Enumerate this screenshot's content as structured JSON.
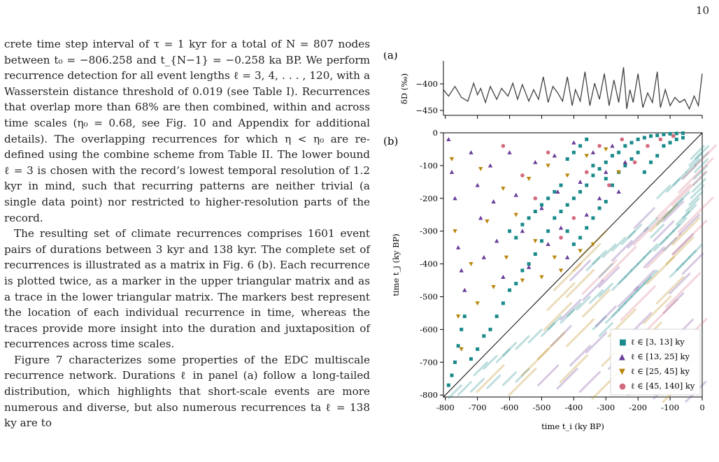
{
  "page_number": "10",
  "body": {
    "paragraphs": [
      "crete time step interval of τ = 1 kyr for a total of N = 807 nodes between t₀ = −806.258 and t_{N−1} = −0.258 ka BP. We perform recurrence detection for all event lengths ℓ = 3, 4, . . . , 120, with a Wasserstein distance threshold of 0.019 (see Table I). Recurrences that overlap more than 68% are then combined, within and across time scales (η₀ = 0.68, see Fig. 10 and Appendix for additional details). The overlapping recurrences for which η < η₀ are re-defined using the combine scheme from Table II. The lower bound ℓ = 3 is chosen with the record’s lowest temporal resolution of 1.2 kyr in mind, such that recurring patterns are neither trivial (a single data point) nor restricted to higher-resolution parts of the record.",
      "The resulting set of climate recurrences comprises 1601 event pairs of durations between 3 kyr and 138 kyr. The complete set of recurrences is illustrated as a matrix in Fig. 6 (b). Each recurrence is plotted twice, as a marker in the upper triangular matrix and as a trace in the lower triangular matrix. The markers best represent the location of each individual recurrence in time, whereas the traces provide more insight into the duration and juxtaposition of recurrences across time scales.",
      "Figure 7 characterizes some properties of the EDC multiscale recurrence network. Durations ℓ in panel (a) follow a long-tailed distribution, which highlights that short-scale events are more numerous and diverse, but also numerous recurrences ta ℓ = 138 ky are to"
    ]
  },
  "figure": {
    "panel_a_label": "(a)",
    "panel_b_label": "(b)",
    "legend_symbols": [
      "■",
      "▲",
      "▼",
      "●"
    ]
  },
  "chart_data": [
    {
      "type": "line",
      "panel": "(a)",
      "ylabel": "δD (‰)",
      "y_ticks": [
        "−400",
        "−450"
      ],
      "xlim": [
        -806,
        0
      ],
      "ylim": [
        -460,
        -375
      ],
      "color": "#111111",
      "x": [
        -806,
        -790,
        -770,
        -750,
        -730,
        -712,
        -700,
        -690,
        -675,
        -660,
        -640,
        -625,
        -605,
        -590,
        -575,
        -560,
        -540,
        -525,
        -510,
        -495,
        -480,
        -465,
        -450,
        -435,
        -420,
        -405,
        -395,
        -380,
        -365,
        -350,
        -335,
        -320,
        -305,
        -290,
        -275,
        -260,
        -245,
        -235,
        -225,
        -215,
        -200,
        -185,
        -170,
        -155,
        -140,
        -130,
        -115,
        -100,
        -85,
        -70,
        -55,
        -40,
        -25,
        -12,
        0
      ],
      "y": [
        -420,
        -430,
        -415,
        -432,
        -438,
        -410,
        -428,
        -418,
        -440,
        -415,
        -435,
        -418,
        -430,
        -410,
        -435,
        -412,
        -438,
        -420,
        -435,
        -400,
        -440,
        -415,
        -425,
        -438,
        -400,
        -445,
        -420,
        -438,
        -392,
        -445,
        -410,
        -435,
        -395,
        -445,
        -405,
        -440,
        -385,
        -450,
        -420,
        -440,
        -395,
        -448,
        -425,
        -440,
        -392,
        -448,
        -420,
        -445,
        -432,
        -440,
        -435,
        -450,
        -430,
        -445,
        -395
      ]
    },
    {
      "type": "scatter",
      "panel": "(b)",
      "xlabel": "time t_i (ky BP)",
      "ylabel": "time t_j (ky BP)",
      "xlim": [
        -806,
        0
      ],
      "ylim": [
        -806,
        0
      ],
      "x_ticks": [
        "-800",
        "-700",
        "-600",
        "-500",
        "-400",
        "-300",
        "-200",
        "-100",
        "0"
      ],
      "y_ticks": [
        "0",
        "-100",
        "-200",
        "-300",
        "-400",
        "-500",
        "-600",
        "-700",
        "-800"
      ],
      "legend_placement": "bottom-right",
      "series": [
        {
          "name": "ℓ ∈ [3, 13] ky",
          "marker": "square",
          "color": "#1a8a8a",
          "points": [
            [
              -790,
              -770
            ],
            [
              -780,
              -740
            ],
            [
              -770,
              -700
            ],
            [
              -760,
              -650
            ],
            [
              -750,
              -600
            ],
            [
              -740,
              -560
            ],
            [
              -720,
              -690
            ],
            [
              -700,
              -660
            ],
            [
              -680,
              -620
            ],
            [
              -660,
              -600
            ],
            [
              -640,
              -560
            ],
            [
              -620,
              -520
            ],
            [
              -600,
              -480
            ],
            [
              -580,
              -460
            ],
            [
              -560,
              -420
            ],
            [
              -540,
              -400
            ],
            [
              -520,
              -370
            ],
            [
              -500,
              -330
            ],
            [
              -480,
              -300
            ],
            [
              -460,
              -260
            ],
            [
              -440,
              -240
            ],
            [
              -420,
              -220
            ],
            [
              -400,
              -200
            ],
            [
              -380,
              -180
            ],
            [
              -360,
              -160
            ],
            [
              -340,
              -130
            ],
            [
              -320,
              -110
            ],
            [
              -300,
              -90
            ],
            [
              -280,
              -70
            ],
            [
              -260,
              -60
            ],
            [
              -240,
              -40
            ],
            [
              -220,
              -30
            ],
            [
              -200,
              -20
            ],
            [
              -180,
              -15
            ],
            [
              -160,
              -10
            ],
            [
              -140,
              -8
            ],
            [
              -120,
              -5
            ],
            [
              -100,
              -3
            ],
            [
              -80,
              -2
            ],
            [
              -60,
              -1
            ],
            [
              -420,
              -80
            ],
            [
              -400,
              -60
            ],
            [
              -380,
              -40
            ],
            [
              -360,
              -20
            ],
            [
              -340,
              -100
            ],
            [
              -300,
              -140
            ],
            [
              -280,
              -160
            ],
            [
              -260,
              -120
            ],
            [
              -240,
              -100
            ],
            [
              -220,
              -80
            ],
            [
              -200,
              -60
            ],
            [
              -180,
              -120
            ],
            [
              -160,
              -90
            ],
            [
              -140,
              -70
            ],
            [
              -120,
              -40
            ],
            [
              -100,
              -30
            ],
            [
              -80,
              -20
            ],
            [
              -60,
              -15
            ],
            [
              -600,
              -300
            ],
            [
              -580,
              -320
            ],
            [
              -560,
              -280
            ],
            [
              -540,
              -260
            ],
            [
              -520,
              -240
            ],
            [
              -500,
              -220
            ],
            [
              -480,
              -200
            ],
            [
              -460,
              -180
            ],
            [
              -440,
              -160
            ],
            [
              -420,
              -300
            ],
            [
              -400,
              -340
            ],
            [
              -380,
              -320
            ],
            [
              -360,
              -290
            ],
            [
              -340,
              -260
            ],
            [
              -320,
              -230
            ],
            [
              -300,
              -210
            ]
          ]
        },
        {
          "name": "ℓ ∈ [13, 25] ky",
          "marker": "triangle-up",
          "color": "#6a3d9a",
          "points": [
            [
              -790,
              -20
            ],
            [
              -780,
              -120
            ],
            [
              -770,
              -200
            ],
            [
              -760,
              -350
            ],
            [
              -750,
              -420
            ],
            [
              -740,
              -480
            ],
            [
              -720,
              -60
            ],
            [
              -700,
              -160
            ],
            [
              -690,
              -260
            ],
            [
              -680,
              -380
            ],
            [
              -660,
              -100
            ],
            [
              -650,
              -210
            ],
            [
              -640,
              -330
            ],
            [
              -620,
              -440
            ],
            [
              -600,
              -60
            ],
            [
              -580,
              -190
            ],
            [
              -560,
              -300
            ],
            [
              -540,
              -410
            ],
            [
              -520,
              -90
            ],
            [
              -500,
              -230
            ],
            [
              -480,
              -340
            ],
            [
              -460,
              -70
            ],
            [
              -450,
              -180
            ],
            [
              -440,
              -290
            ],
            [
              -420,
              -380
            ],
            [
              -400,
              -30
            ],
            [
              -380,
              -150
            ],
            [
              -360,
              -250
            ],
            [
              -340,
              -60
            ],
            [
              -320,
              -200
            ],
            [
              -300,
              -120
            ],
            [
              -280,
              -40
            ],
            [
              -260,
              -180
            ],
            [
              -240,
              -90
            ]
          ]
        },
        {
          "name": "ℓ ∈ [25, 45] ky",
          "marker": "triangle-down",
          "color": "#b8860b",
          "points": [
            [
              -780,
              -80
            ],
            [
              -770,
              -300
            ],
            [
              -760,
              -560
            ],
            [
              -750,
              -660
            ],
            [
              -720,
              -400
            ],
            [
              -700,
              -520
            ],
            [
              -690,
              -110
            ],
            [
              -670,
              -270
            ],
            [
              -650,
              -470
            ],
            [
              -620,
              -170
            ],
            [
              -610,
              -380
            ],
            [
              -580,
              -250
            ],
            [
              -560,
              -450
            ],
            [
              -540,
              -140
            ],
            [
              -520,
              -330
            ],
            [
              -500,
              -440
            ],
            [
              -480,
              -100
            ],
            [
              -460,
              -380
            ],
            [
              -440,
              -420
            ],
            [
              -420,
              -130
            ],
            [
              -380,
              -360
            ],
            [
              -360,
              -70
            ],
            [
              -340,
              -340
            ],
            [
              -300,
              -50
            ],
            [
              -260,
              -120
            ]
          ]
        },
        {
          "name": "ℓ ∈ [45, 140] ky",
          "marker": "circle",
          "color": "#d46a7e",
          "points": [
            [
              -620,
              -40
            ],
            [
              -560,
              -130
            ],
            [
              -520,
              -200
            ],
            [
              -480,
              -60
            ],
            [
              -440,
              -320
            ],
            [
              -400,
              -260
            ],
            [
              -360,
              -120
            ],
            [
              -320,
              -40
            ],
            [
              -290,
              -160
            ],
            [
              -250,
              -20
            ],
            [
              -210,
              -90
            ],
            [
              -170,
              -40
            ],
            [
              -130,
              -20
            ],
            [
              -90,
              -10
            ]
          ]
        }
      ]
    }
  ]
}
